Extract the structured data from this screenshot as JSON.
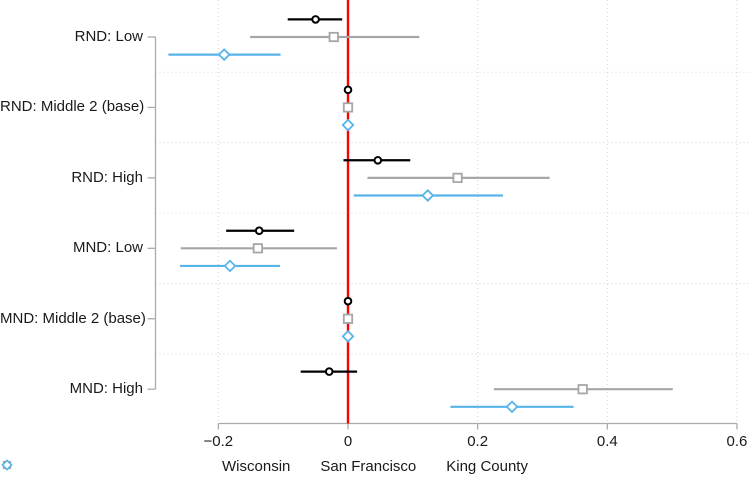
{
  "chart_data": {
    "type": "scatter",
    "subtype": "coefficient-plot-with-confidence-intervals",
    "title": "",
    "xlabel": "",
    "ylabel": "",
    "categories": [
      "RND: Low",
      "RND: Middle 2 (base)",
      "RND: High",
      "MND: Low",
      "MND: Middle 2 (base)",
      "MND: High"
    ],
    "series": [
      {
        "name": "Wisconsin",
        "marker": "circle",
        "color": "#000000",
        "estimates": [
          -0.05,
          0,
          0.046,
          -0.137,
          0,
          -0.029
        ],
        "ci_low": [
          -0.093,
          0,
          -0.007,
          -0.188,
          0,
          -0.073
        ],
        "ci_high": [
          -0.009,
          0,
          0.096,
          -0.083,
          0,
          0.014
        ]
      },
      {
        "name": "San Francisco",
        "marker": "square",
        "color": "#a6a6a6",
        "estimates": [
          -0.022,
          0,
          0.169,
          -0.139,
          0,
          0.362
        ],
        "ci_low": [
          -0.151,
          0,
          0.03,
          -0.258,
          0,
          0.225
        ],
        "ci_high": [
          0.11,
          0,
          0.311,
          -0.017,
          0,
          0.501
        ]
      },
      {
        "name": "King County",
        "marker": "diamond",
        "color": "#56b4e9",
        "estimates": [
          -0.191,
          0,
          0.123,
          -0.182,
          0,
          0.253
        ],
        "ci_low": [
          -0.277,
          0,
          0.009,
          -0.259,
          0,
          0.158
        ],
        "ci_high": [
          -0.104,
          0,
          0.239,
          -0.105,
          0,
          0.348
        ]
      }
    ],
    "x_axis": {
      "range": [
        -0.2,
        0.6
      ],
      "ticks": [
        {
          "value": -0.2,
          "label": "−0.2"
        },
        {
          "value": 0,
          "label": "0"
        },
        {
          "value": 0.2,
          "label": "0.2"
        },
        {
          "value": 0.4,
          "label": "0.4"
        },
        {
          "value": 0.6,
          "label": "0.6"
        }
      ]
    },
    "reference_line": {
      "value": 0,
      "color": "#ff0000"
    },
    "legend": {
      "position": "bottom",
      "entries": [
        "Wisconsin",
        "San Francisco",
        "King County"
      ]
    },
    "grid": {
      "vertical_dotted_at_ticks": true,
      "horizontal_dotted_between_groups": true,
      "grid_color": "#d4d4d4",
      "axis_color": "#ababab"
    }
  }
}
